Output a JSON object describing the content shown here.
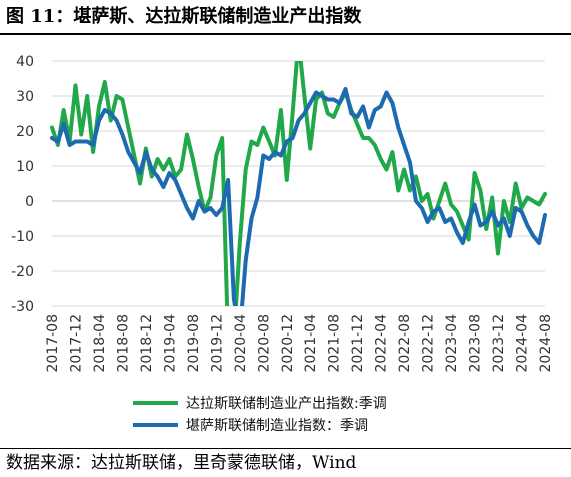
{
  "header": {
    "title": "图 11：堪萨斯、达拉斯联储制造业产出指数"
  },
  "footer": {
    "source": "数据来源：达拉斯联储，里奇蒙德联储，Wind"
  },
  "chart_data": {
    "type": "line",
    "title": "图 11：堪萨斯、达拉斯联储制造业产出指数",
    "xlabel": "",
    "ylabel": "",
    "ylim": [
      -30,
      40
    ],
    "yticks": [
      -30,
      -20,
      -10,
      0,
      10,
      20,
      30,
      40
    ],
    "grid": "horizontal",
    "legend_position": "bottom",
    "x_tick_labels": [
      "2017-08",
      "2017-12",
      "2018-04",
      "2018-08",
      "2018-12",
      "2019-04",
      "2019-08",
      "2019-12",
      "2020-04",
      "2020-08",
      "2020-12",
      "2021-04",
      "2021-08",
      "2021-12",
      "2022-04",
      "2022-08",
      "2022-12",
      "2023-04",
      "2023-08",
      "2023-12",
      "2024-04",
      "2024-08"
    ],
    "x": [
      "2017-08",
      "2017-09",
      "2017-10",
      "2017-11",
      "2017-12",
      "2018-01",
      "2018-02",
      "2018-03",
      "2018-04",
      "2018-05",
      "2018-06",
      "2018-07",
      "2018-08",
      "2018-09",
      "2018-10",
      "2018-11",
      "2018-12",
      "2019-01",
      "2019-02",
      "2019-03",
      "2019-04",
      "2019-05",
      "2019-06",
      "2019-07",
      "2019-08",
      "2019-09",
      "2019-10",
      "2019-11",
      "2019-12",
      "2020-01",
      "2020-02",
      "2020-03",
      "2020-04",
      "2020-05",
      "2020-06",
      "2020-07",
      "2020-08",
      "2020-09",
      "2020-10",
      "2020-11",
      "2020-12",
      "2021-01",
      "2021-02",
      "2021-03",
      "2021-04",
      "2021-05",
      "2021-06",
      "2021-07",
      "2021-08",
      "2021-09",
      "2021-10",
      "2021-11",
      "2021-12",
      "2022-01",
      "2022-02",
      "2022-03",
      "2022-04",
      "2022-05",
      "2022-06",
      "2022-07",
      "2022-08",
      "2022-09",
      "2022-10",
      "2022-11",
      "2022-12",
      "2023-01",
      "2023-02",
      "2023-03",
      "2023-04",
      "2023-05",
      "2023-06",
      "2023-07",
      "2023-08",
      "2023-09",
      "2023-10",
      "2023-11",
      "2023-12",
      "2024-01",
      "2024-02",
      "2024-03",
      "2024-04",
      "2024-05",
      "2024-06",
      "2024-07",
      "2024-08"
    ],
    "series": [
      {
        "name": "达拉斯联储制造业产出指数:季调",
        "color": "#21A84A",
        "values": [
          21,
          16,
          26,
          17,
          33,
          19,
          30,
          14,
          27,
          34,
          23,
          30,
          29,
          21,
          13,
          5,
          15,
          7,
          12,
          9,
          12,
          7,
          9,
          19,
          12,
          4,
          -3,
          1,
          13,
          18,
          -40,
          -40,
          -12,
          9,
          17,
          16,
          21,
          17,
          13,
          26,
          6,
          25,
          46,
          30,
          15,
          29,
          31,
          25,
          24,
          28,
          31,
          26,
          22,
          18,
          18,
          16,
          12,
          9,
          14,
          3,
          9,
          3,
          7,
          0,
          2,
          -5,
          0,
          5,
          -1,
          -3,
          -7,
          -11,
          8,
          3,
          -8,
          1,
          -15,
          0,
          -6,
          5,
          -2,
          1,
          0,
          -1,
          2
        ]
      },
      {
        "name": "堪萨斯联储制造业指数：季调",
        "color": "#1C6AB0",
        "values": [
          18,
          17,
          22,
          16,
          17,
          17,
          17,
          16,
          23,
          26,
          25,
          23,
          19,
          14,
          11,
          8,
          14,
          9,
          7,
          4,
          8,
          6,
          2,
          -2,
          -5,
          0,
          -3,
          -2,
          -4,
          -2,
          6,
          -28,
          -38,
          -17,
          -5,
          1,
          13,
          12,
          14,
          13,
          17,
          18,
          23,
          25,
          28,
          31,
          30,
          29,
          29,
          28,
          32,
          25,
          24,
          27,
          21,
          26,
          27,
          31,
          28,
          21,
          16,
          11,
          0,
          -2,
          -6,
          -3,
          -2,
          -6,
          -5,
          -9,
          -12,
          -6,
          -1,
          -7,
          -6,
          -3,
          -7,
          -5,
          -10,
          -2,
          -3,
          -7,
          -10,
          -12,
          -4
        ]
      }
    ]
  }
}
